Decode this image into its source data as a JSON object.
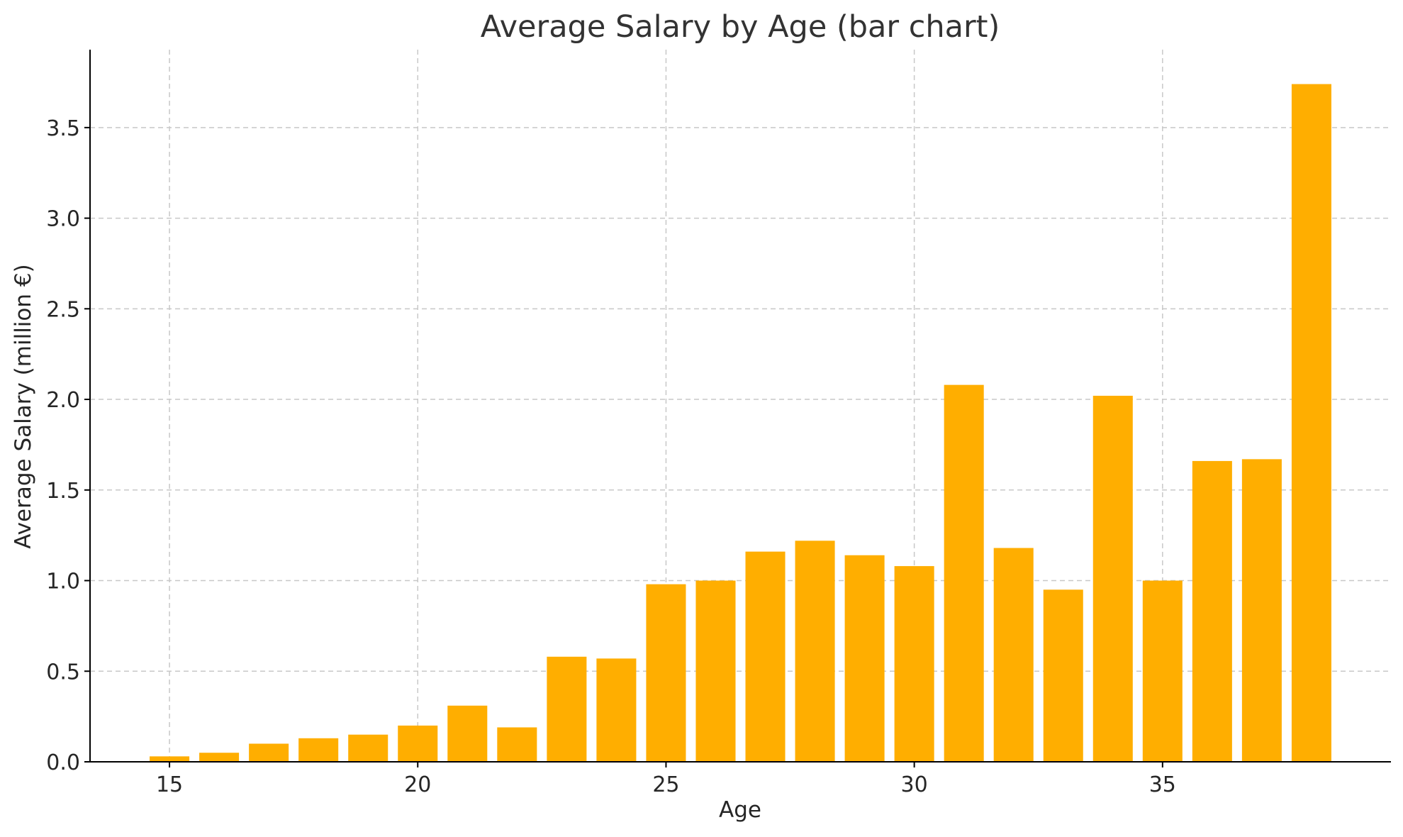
{
  "chart_data": {
    "type": "bar",
    "title": "Average Salary by Age (bar chart)",
    "xlabel": "Age",
    "ylabel": "Average Salary (million €)",
    "x": [
      15,
      16,
      17,
      18,
      19,
      20,
      21,
      22,
      23,
      24,
      25,
      26,
      27,
      28,
      29,
      30,
      31,
      32,
      33,
      34,
      35,
      36,
      37,
      38
    ],
    "values": [
      0.03,
      0.05,
      0.1,
      0.13,
      0.15,
      0.2,
      0.31,
      0.19,
      0.58,
      0.57,
      0.98,
      1.0,
      1.16,
      1.22,
      1.14,
      1.08,
      2.08,
      1.18,
      0.95,
      2.02,
      1.0,
      1.66,
      1.67,
      3.74
    ],
    "xticks": [
      15,
      20,
      25,
      30,
      35
    ],
    "yticks": [
      0.0,
      0.5,
      1.0,
      1.5,
      2.0,
      2.5,
      3.0,
      3.5
    ],
    "xlim": [
      13.4,
      39.6
    ],
    "ylim": [
      0,
      3.93
    ],
    "grid": true,
    "legend": "none",
    "bar_color": "#FFAE00"
  }
}
